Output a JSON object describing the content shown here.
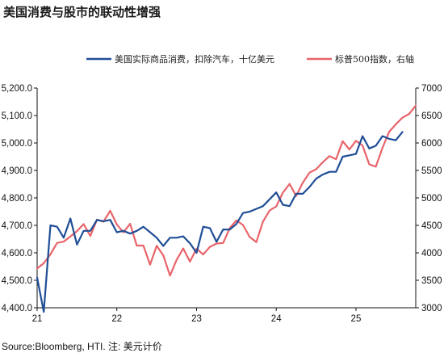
{
  "title": "美国消费与股市的联动性增强",
  "source": "Source:Bloomberg, HTI. 注: 美元计价",
  "colors": {
    "consumption": "#1f4e96",
    "sp500": "#e8646a"
  },
  "chart_data": {
    "type": "line",
    "title": "美国消费与股市的联动性增强",
    "xlabel": "",
    "ylabel": "",
    "x_ticks": [
      "21",
      "22",
      "23",
      "24",
      "25"
    ],
    "x_range": [
      2021.0,
      2025.75
    ],
    "y_left": {
      "range": [
        4400,
        5200
      ],
      "ticks": [
        "4,400.0",
        "4,500.0",
        "4,600.0",
        "4,700.0",
        "4,800.0",
        "4,900.0",
        "5,000.0",
        "5,100.0",
        "5,200.0"
      ],
      "tick_values": [
        4400,
        4500,
        4600,
        4700,
        4800,
        4900,
        5000,
        5100,
        5200
      ]
    },
    "y_right": {
      "range": [
        3000,
        7000
      ],
      "ticks": [
        "3000",
        "3500",
        "4000",
        "4500",
        "5000",
        "5500",
        "6000",
        "6500",
        "7000"
      ],
      "tick_values": [
        3000,
        3500,
        4000,
        4500,
        5000,
        5500,
        6000,
        6500,
        7000
      ]
    },
    "grid": false,
    "legend_position": "top",
    "series": [
      {
        "name": "美国实际商品消费，扣除汽车，十亿美元",
        "axis": "left",
        "x": [
          2021.0,
          2021.083,
          2021.167,
          2021.25,
          2021.333,
          2021.417,
          2021.5,
          2021.583,
          2021.667,
          2021.75,
          2021.833,
          2021.917,
          2022.0,
          2022.083,
          2022.167,
          2022.25,
          2022.333,
          2022.417,
          2022.5,
          2022.583,
          2022.667,
          2022.75,
          2022.833,
          2022.917,
          2023.0,
          2023.083,
          2023.167,
          2023.25,
          2023.333,
          2023.417,
          2023.5,
          2023.583,
          2023.667,
          2023.75,
          2023.833,
          2023.917,
          2024.0,
          2024.083,
          2024.167,
          2024.25,
          2024.333,
          2024.417,
          2024.5,
          2024.583,
          2024.667,
          2024.75,
          2024.833,
          2024.917,
          2025.0,
          2025.083,
          2025.167,
          2025.25,
          2025.333,
          2025.417,
          2025.5,
          2025.583
        ],
        "values": [
          4510,
          4385,
          4700,
          4695,
          4655,
          4725,
          4630,
          4680,
          4680,
          4720,
          4715,
          4720,
          4675,
          4680,
          4670,
          4680,
          4695,
          4675,
          4655,
          4625,
          4655,
          4655,
          4660,
          4635,
          4600,
          4695,
          4690,
          4640,
          4685,
          4685,
          4705,
          4745,
          4750,
          4760,
          4770,
          4795,
          4820,
          4775,
          4770,
          4815,
          4815,
          4840,
          4870,
          4885,
          4895,
          4895,
          4950,
          4955,
          4960,
          5025,
          4980,
          4990,
          5025,
          5015,
          5010,
          5040
        ]
      },
      {
        "name": "标普500指数，右轴",
        "axis": "right",
        "x": [
          2021.0,
          2021.083,
          2021.167,
          2021.25,
          2021.333,
          2021.417,
          2021.5,
          2021.583,
          2021.667,
          2021.75,
          2021.833,
          2021.917,
          2022.0,
          2022.083,
          2022.167,
          2022.25,
          2022.333,
          2022.417,
          2022.5,
          2022.583,
          2022.667,
          2022.75,
          2022.833,
          2022.917,
          2023.0,
          2023.083,
          2023.167,
          2023.25,
          2023.333,
          2023.417,
          2023.5,
          2023.583,
          2023.667,
          2023.75,
          2023.833,
          2023.917,
          2024.0,
          2024.083,
          2024.167,
          2024.25,
          2024.333,
          2024.417,
          2024.5,
          2024.583,
          2024.667,
          2024.75,
          2024.833,
          2024.917,
          2025.0,
          2025.083,
          2025.167,
          2025.25,
          2025.333,
          2025.417,
          2025.5,
          2025.583,
          2025.667,
          2025.75
        ],
        "values": [
          3714,
          3811,
          3973,
          4181,
          4204,
          4298,
          4395,
          4523,
          4308,
          4605,
          4567,
          4766,
          4516,
          4374,
          4530,
          4132,
          4132,
          3785,
          4130,
          3955,
          3586,
          3872,
          4080,
          3840,
          4077,
          3970,
          4109,
          4169,
          4180,
          4450,
          4589,
          4508,
          4288,
          4194,
          4568,
          4770,
          4846,
          5096,
          5254,
          5036,
          5278,
          5460,
          5522,
          5648,
          5762,
          5705,
          6032,
          5882,
          6040,
          5955,
          5612,
          5569,
          5912,
          6205,
          6339,
          6460,
          6530,
          6680
        ]
      }
    ]
  }
}
